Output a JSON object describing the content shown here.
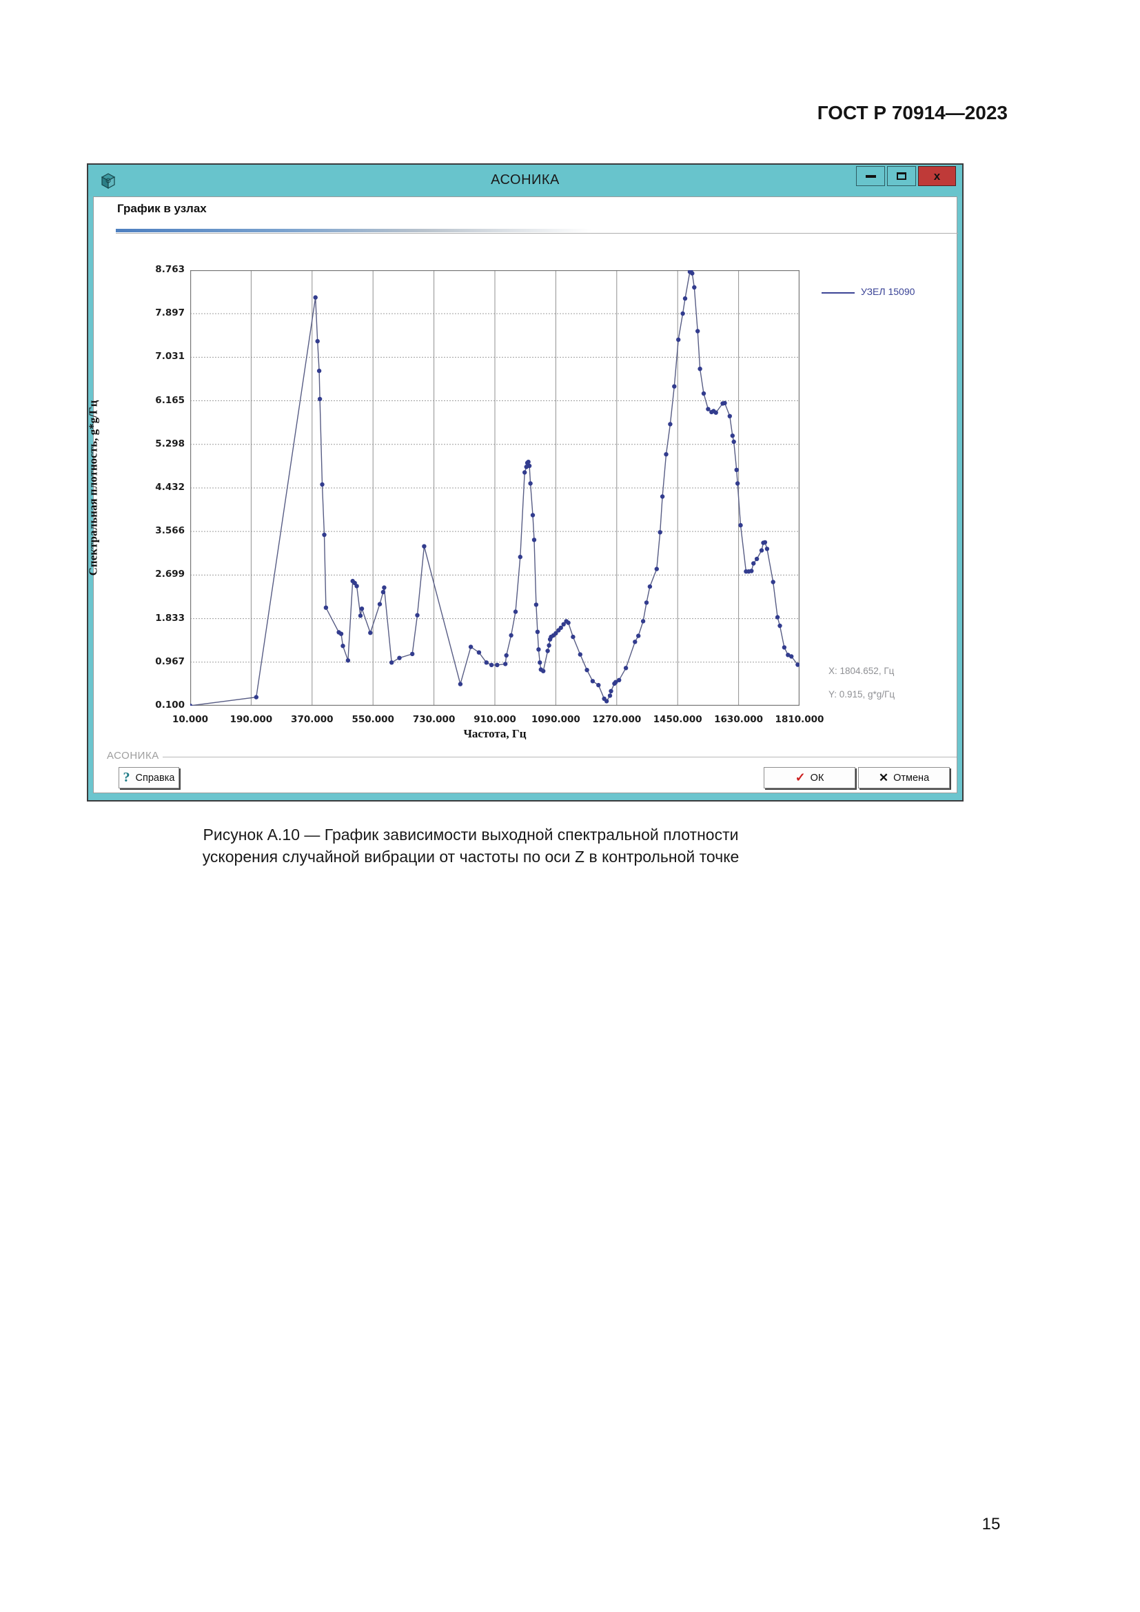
{
  "page": {
    "header": "ГОСТ Р 70914—2023",
    "caption_line1": "Рисунок А.10 — График зависимости выходной спектральной плотности",
    "caption_line2": "ускорения случайной вибрации от частоты по оси Z в контрольной точке",
    "page_number": "15"
  },
  "window": {
    "title": "АСОНИКА",
    "panel_title": "График в узлах",
    "groupbox_label": "АСОНИКА",
    "icons": {
      "close": "x",
      "help": "?",
      "ok": "✓",
      "cancel": "✕"
    },
    "buttons": {
      "help": "Справка",
      "ok": "ОК",
      "cancel": "Отмена"
    }
  },
  "colors": {
    "titlebar": "#68c4cc",
    "frame": "#6cc5ce",
    "close_button": "#bf3a38",
    "line": "#575c84",
    "marker": "#323c8e",
    "grid": "#9d9d9d"
  },
  "chart_data": {
    "type": "line",
    "xlabel": "Частота, Гц",
    "ylabel": "Спектральная плотность, g*g/Гц",
    "xlim": [
      10,
      1810
    ],
    "ylim": [
      0.1,
      8.763
    ],
    "grid": true,
    "legend_position": "top-right",
    "x_ticks": [
      {
        "value": 10,
        "label": "10.000"
      },
      {
        "value": 190,
        "label": "190.000"
      },
      {
        "value": 370,
        "label": "370.000"
      },
      {
        "value": 550,
        "label": "550.000"
      },
      {
        "value": 730,
        "label": "730.000"
      },
      {
        "value": 910,
        "label": "910.000"
      },
      {
        "value": 1090,
        "label": "1090.000"
      },
      {
        "value": 1270,
        "label": "1270.000"
      },
      {
        "value": 1450,
        "label": "1450.000"
      },
      {
        "value": 1630,
        "label": "1630.000"
      },
      {
        "value": 1810,
        "label": "1810.000"
      }
    ],
    "y_ticks": [
      {
        "value": 0.1,
        "label": "0.100"
      },
      {
        "value": 0.967,
        "label": "0.967"
      },
      {
        "value": 1.833,
        "label": "1.833"
      },
      {
        "value": 2.699,
        "label": "2.699"
      },
      {
        "value": 3.566,
        "label": "3.566"
      },
      {
        "value": 4.432,
        "label": "4.432"
      },
      {
        "value": 5.298,
        "label": "5.298"
      },
      {
        "value": 6.165,
        "label": "6.165"
      },
      {
        "value": 7.031,
        "label": "7.031"
      },
      {
        "value": 7.897,
        "label": "7.897"
      },
      {
        "value": 8.763,
        "label": "8.763"
      }
    ],
    "legend": [
      {
        "name": "УЗЕЛ 15090",
        "color": "#3b4395"
      }
    ],
    "annotations": [
      "X: 1804.652, Гц",
      "Y: 0.915, g*g/Гц"
    ],
    "series": [
      {
        "name": "УЗЕЛ 15090",
        "line_color": "#575c84",
        "marker_color": "#323c8e",
        "points": [
          [
            10,
            0.1
          ],
          [
            205,
            0.27
          ],
          [
            380,
            8.22
          ],
          [
            386,
            7.35
          ],
          [
            391,
            6.76
          ],
          [
            393,
            6.2
          ],
          [
            400,
            4.5
          ],
          [
            406,
            3.5
          ],
          [
            411,
            2.05
          ],
          [
            449,
            1.56
          ],
          [
            456,
            1.53
          ],
          [
            461,
            1.29
          ],
          [
            476,
            1.0
          ],
          [
            490,
            2.58
          ],
          [
            496,
            2.54
          ],
          [
            502,
            2.48
          ],
          [
            513,
            1.89
          ],
          [
            517,
            2.03
          ],
          [
            542,
            1.55
          ],
          [
            570,
            2.12
          ],
          [
            580,
            2.36
          ],
          [
            583,
            2.45
          ],
          [
            605,
            0.96
          ],
          [
            628,
            1.05
          ],
          [
            666,
            1.13
          ],
          [
            681,
            1.9
          ],
          [
            701,
            3.27
          ],
          [
            808,
            0.53
          ],
          [
            839,
            1.27
          ],
          [
            863,
            1.16
          ],
          [
            885,
            0.96
          ],
          [
            900,
            0.91
          ],
          [
            917,
            0.91
          ],
          [
            941,
            0.93
          ],
          [
            944,
            1.1
          ],
          [
            958,
            1.5
          ],
          [
            971,
            1.97
          ],
          [
            985,
            3.06
          ],
          [
            998,
            4.74
          ],
          [
            1003,
            4.85
          ],
          [
            1006,
            4.93
          ],
          [
            1009,
            4.95
          ],
          [
            1012,
            4.87
          ],
          [
            1015,
            4.52
          ],
          [
            1022,
            3.89
          ],
          [
            1026,
            3.4
          ],
          [
            1032,
            2.11
          ],
          [
            1036,
            1.57
          ],
          [
            1039,
            1.22
          ],
          [
            1043,
            0.96
          ],
          [
            1046,
            0.82
          ],
          [
            1053,
            0.79
          ],
          [
            1066,
            1.19
          ],
          [
            1070,
            1.3
          ],
          [
            1073,
            1.42
          ],
          [
            1076,
            1.47
          ],
          [
            1083,
            1.5
          ],
          [
            1090,
            1.54
          ],
          [
            1098,
            1.6
          ],
          [
            1105,
            1.65
          ],
          [
            1113,
            1.72
          ],
          [
            1121,
            1.78
          ],
          [
            1127,
            1.75
          ],
          [
            1141,
            1.47
          ],
          [
            1162,
            1.12
          ],
          [
            1182,
            0.81
          ],
          [
            1199,
            0.59
          ],
          [
            1216,
            0.51
          ],
          [
            1233,
            0.24
          ],
          [
            1240,
            0.19
          ],
          [
            1250,
            0.3
          ],
          [
            1253,
            0.39
          ],
          [
            1263,
            0.54
          ],
          [
            1267,
            0.57
          ],
          [
            1277,
            0.61
          ],
          [
            1297,
            0.85
          ],
          [
            1324,
            1.37
          ],
          [
            1334,
            1.49
          ],
          [
            1348,
            1.78
          ],
          [
            1358,
            2.15
          ],
          [
            1368,
            2.47
          ],
          [
            1388,
            2.82
          ],
          [
            1398,
            3.55
          ],
          [
            1405,
            4.26
          ],
          [
            1416,
            5.1
          ],
          [
            1428,
            5.7
          ],
          [
            1440,
            6.45
          ],
          [
            1452,
            7.38
          ],
          [
            1465,
            7.9
          ],
          [
            1472,
            8.2
          ],
          [
            1486,
            8.73
          ],
          [
            1489,
            8.76
          ],
          [
            1493,
            8.7
          ],
          [
            1499,
            8.42
          ],
          [
            1509,
            7.55
          ],
          [
            1516,
            6.8
          ],
          [
            1527,
            6.31
          ],
          [
            1540,
            6.0
          ],
          [
            1550,
            5.94
          ],
          [
            1556,
            5.96
          ],
          [
            1563,
            5.93
          ],
          [
            1583,
            6.11
          ],
          [
            1589,
            6.12
          ],
          [
            1604,
            5.86
          ],
          [
            1612,
            5.47
          ],
          [
            1616,
            5.35
          ],
          [
            1624,
            4.79
          ],
          [
            1627,
            4.52
          ],
          [
            1636,
            3.69
          ],
          [
            1652,
            2.77
          ],
          [
            1660,
            2.77
          ],
          [
            1668,
            2.78
          ],
          [
            1674,
            2.93
          ],
          [
            1684,
            3.02
          ],
          [
            1698,
            3.19
          ],
          [
            1703,
            3.34
          ],
          [
            1708,
            3.35
          ],
          [
            1714,
            3.22
          ],
          [
            1732,
            2.56
          ],
          [
            1745,
            1.86
          ],
          [
            1752,
            1.69
          ],
          [
            1765,
            1.26
          ],
          [
            1776,
            1.11
          ],
          [
            1786,
            1.08
          ],
          [
            1804.652,
            0.915
          ]
        ]
      }
    ]
  }
}
